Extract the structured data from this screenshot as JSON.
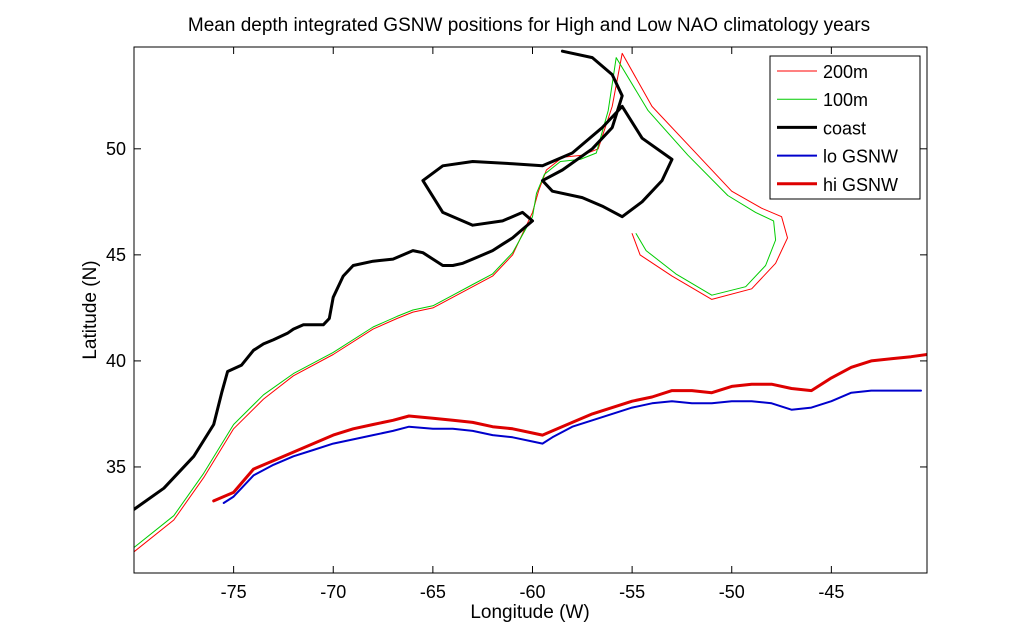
{
  "chart_data": {
    "type": "line",
    "title": "Mean depth integrated GSNW positions for High and Low NAO climatology years",
    "xlabel": "Longitude (W)",
    "ylabel": "Latitude (N)",
    "xlim": [
      -80,
      -40.2
    ],
    "ylim": [
      30,
      54.8
    ],
    "xticks": [
      -75,
      -70,
      -65,
      -60,
      -55,
      -50,
      -45
    ],
    "yticks": [
      35,
      40,
      45,
      50
    ],
    "grid": false,
    "legend_position": "top-right",
    "series": [
      {
        "name": "200m",
        "color": "#ff0000",
        "width": 1,
        "style": "contour",
        "x": [
          -80,
          -78,
          -76.5,
          -75,
          -73.5,
          -72,
          -70,
          -68,
          -66.8,
          -66,
          -65,
          -64,
          -63,
          -62,
          -61,
          -60,
          -59.7,
          -59.3,
          -58.5,
          -57.5,
          -56.7,
          -56,
          -55.5,
          -54,
          -52,
          -50,
          -48.5,
          -47.5,
          -47.2,
          -47.8,
          -49,
          -51,
          -53,
          -54.6,
          -55
        ],
        "y": [
          31,
          32.5,
          34.5,
          36.8,
          38.2,
          39.3,
          40.3,
          41.5,
          42,
          42.3,
          42.5,
          43,
          43.5,
          44,
          45,
          47,
          48,
          49,
          49.6,
          49.7,
          50,
          52,
          54.5,
          52,
          50,
          48,
          47.2,
          46.8,
          45.8,
          44.6,
          43.4,
          42.9,
          44,
          45,
          46
        ]
      },
      {
        "name": "100m",
        "color": "#00cc00",
        "width": 1,
        "style": "contour",
        "x": [
          -80,
          -78,
          -76.5,
          -75,
          -73.5,
          -72,
          -70,
          -68,
          -66.8,
          -66,
          -65,
          -64,
          -63,
          -62,
          -61,
          -60,
          -59.8,
          -59.4,
          -58.6,
          -57.6,
          -56.8,
          -56.2,
          -55.8,
          -54.2,
          -52.2,
          -50.2,
          -48.8,
          -47.9,
          -47.8,
          -48.3,
          -49.3,
          -51,
          -52.8,
          -54.3,
          -54.8
        ],
        "y": [
          31.2,
          32.7,
          34.7,
          37,
          38.4,
          39.4,
          40.4,
          41.6,
          42.1,
          42.4,
          42.6,
          43.1,
          43.6,
          44.1,
          45.1,
          46.8,
          47.9,
          48.8,
          49.4,
          49.5,
          49.8,
          51.8,
          54.3,
          51.8,
          49.7,
          47.8,
          47,
          46.6,
          45.7,
          44.5,
          43.5,
          43.1,
          44.1,
          45.2,
          46
        ]
      },
      {
        "name": "coast",
        "color": "#000000",
        "width": 3,
        "style": "coast",
        "x": [
          -80,
          -78.5,
          -77,
          -76,
          -75.6,
          -75.3,
          -74.6,
          -74,
          -73.5,
          -73,
          -72.3,
          -72,
          -71.5,
          -70.5,
          -70.2,
          -70,
          -69.5,
          -69,
          -68,
          -67,
          -66.5,
          -66,
          -65.5,
          -65,
          -64.5,
          -64,
          -63.5,
          -63,
          -62.5,
          -62,
          -61.5,
          -61,
          -60.5,
          -60,
          -60.5,
          -61.5,
          -63,
          -64.5,
          -65.5,
          -64.5,
          -63,
          -61,
          -59.5,
          -58,
          -56.5,
          -55.5,
          -54.5,
          -53,
          -53.5,
          -54.5,
          -55.5,
          -56.5,
          -57.5,
          -59,
          -59.5,
          -58.5,
          -57,
          -56,
          -55.5,
          -56,
          -57,
          -58.5
        ],
        "y": [
          33,
          34,
          35.5,
          37,
          38.5,
          39.5,
          39.8,
          40.5,
          40.8,
          41,
          41.3,
          41.5,
          41.7,
          41.7,
          42,
          43,
          44,
          44.5,
          44.7,
          44.8,
          45,
          45.2,
          45.1,
          44.8,
          44.5,
          44.5,
          44.6,
          44.8,
          45,
          45.2,
          45.5,
          45.8,
          46.2,
          46.6,
          47,
          46.6,
          46.4,
          47,
          48.5,
          49.2,
          49.4,
          49.3,
          49.2,
          49.8,
          51,
          52,
          50.5,
          49.5,
          48.5,
          47.5,
          46.8,
          47.3,
          47.7,
          48,
          48.5,
          49,
          50,
          51,
          52.5,
          53.5,
          54.3,
          54.6
        ]
      },
      {
        "name": "lo GSNW",
        "color": "#0000cc",
        "width": 2,
        "style": "line",
        "x": [
          -75.5,
          -75,
          -74,
          -73,
          -72,
          -71,
          -70,
          -69,
          -68,
          -67,
          -66.2,
          -65,
          -64,
          -63,
          -62,
          -61,
          -60,
          -59.5,
          -59,
          -58,
          -57,
          -56,
          -55,
          -54,
          -53,
          -52,
          -51,
          -50,
          -49,
          -48,
          -47,
          -46,
          -45,
          -44,
          -43,
          -42,
          -41,
          -40.5
        ],
        "y": [
          33.3,
          33.6,
          34.6,
          35.1,
          35.5,
          35.8,
          36.1,
          36.3,
          36.5,
          36.7,
          36.9,
          36.8,
          36.8,
          36.7,
          36.5,
          36.4,
          36.2,
          36.1,
          36.4,
          36.9,
          37.2,
          37.5,
          37.8,
          38,
          38.1,
          38,
          38,
          38.1,
          38.1,
          38,
          37.7,
          37.8,
          38.1,
          38.5,
          38.6,
          38.6,
          38.6,
          38.6
        ]
      },
      {
        "name": "hi GSNW",
        "color": "#dd0000",
        "width": 3,
        "style": "line",
        "x": [
          -76,
          -75,
          -74,
          -73,
          -72,
          -71,
          -70,
          -69,
          -68,
          -67,
          -66.2,
          -65,
          -64,
          -63,
          -62,
          -61,
          -60,
          -59.5,
          -59,
          -58,
          -57,
          -56,
          -55,
          -54,
          -53,
          -52,
          -51,
          -50,
          -49,
          -48,
          -47,
          -46,
          -45,
          -44,
          -43,
          -42,
          -41,
          -40.2
        ],
        "y": [
          33.4,
          33.8,
          34.9,
          35.3,
          35.7,
          36.1,
          36.5,
          36.8,
          37,
          37.2,
          37.4,
          37.3,
          37.2,
          37.1,
          36.9,
          36.8,
          36.6,
          36.5,
          36.7,
          37.1,
          37.5,
          37.8,
          38.1,
          38.3,
          38.6,
          38.6,
          38.5,
          38.8,
          38.9,
          38.9,
          38.7,
          38.6,
          39.2,
          39.7,
          40,
          40.1,
          40.2,
          40.3
        ]
      }
    ]
  }
}
